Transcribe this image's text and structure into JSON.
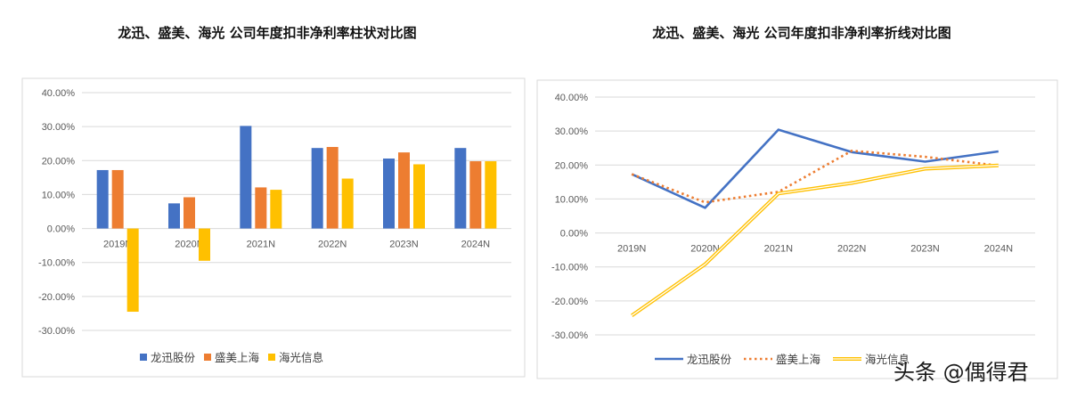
{
  "chart_data": [
    {
      "type": "bar",
      "title": "龙迅、盛美、海光 公司年度扣非净利率柱状对比图",
      "categories": [
        "2019N",
        "2020N",
        "2021N",
        "2022N",
        "2023N",
        "2024N"
      ],
      "series": [
        {
          "name": "龙迅股份",
          "color": "#4472C4",
          "values": [
            17.2,
            7.4,
            30.2,
            23.7,
            20.6,
            23.7
          ]
        },
        {
          "name": "盛美上海",
          "color": "#ED7D31",
          "values": [
            17.2,
            9.2,
            12.1,
            24.0,
            22.4,
            19.8
          ]
        },
        {
          "name": "海光信息",
          "color": "#FFC000",
          "values": [
            -24.5,
            -9.5,
            11.4,
            14.7,
            18.9,
            19.8
          ]
        }
      ],
      "ylim": [
        -30,
        40
      ],
      "yticks": [
        "40.00%",
        "30.00%",
        "20.00%",
        "10.00%",
        "0.00%",
        "-10.00%",
        "-20.00%",
        "-30.00%"
      ],
      "grid": true,
      "legend": "bottom"
    },
    {
      "type": "line",
      "title": "龙迅、盛美、海光 公司年度扣非净利率折线对比图",
      "categories": [
        "2019N",
        "2020N",
        "2021N",
        "2022N",
        "2023N",
        "2024N"
      ],
      "series": [
        {
          "name": "龙迅股份",
          "color": "#4472C4",
          "style": "solid",
          "values": [
            17.3,
            7.4,
            30.4,
            23.8,
            21.0,
            24.0
          ]
        },
        {
          "name": "盛美上海",
          "color": "#ED7D31",
          "style": "dotted",
          "values": [
            17.3,
            9.0,
            12.1,
            24.2,
            22.4,
            19.8
          ]
        },
        {
          "name": "海光信息",
          "color": "#FFC000",
          "style": "double",
          "values": [
            -24.3,
            -9.2,
            11.6,
            14.7,
            18.9,
            19.9
          ]
        }
      ],
      "ylim": [
        -30,
        40
      ],
      "yticks": [
        "40.00%",
        "30.00%",
        "20.00%",
        "10.00%",
        "0.00%",
        "-10.00%",
        "-20.00%",
        "-30.00%"
      ],
      "grid": true,
      "legend": "bottom"
    }
  ],
  "watermark": "头条 @偶得君"
}
